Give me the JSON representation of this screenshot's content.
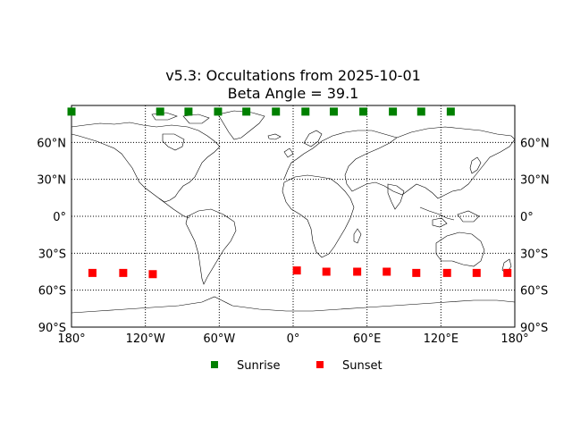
{
  "title": {
    "line1": "v5.3: Occultations from 2025-10-01",
    "line2": "Beta Angle = 39.1"
  },
  "legend": {
    "items": [
      {
        "label": "Sunrise",
        "color": "#008000"
      },
      {
        "label": "Sunset",
        "color": "#ff0000"
      }
    ],
    "placement": "bottom-center"
  },
  "chart_data": {
    "type": "scatter",
    "projection": "cylindrical",
    "xlim": [
      -180,
      180
    ],
    "ylim": [
      -90,
      90
    ],
    "grid": true,
    "x_ticks": [
      {
        "value": -180,
        "label": "180°"
      },
      {
        "value": -120,
        "label": "120°W"
      },
      {
        "value": -60,
        "label": "60°W"
      },
      {
        "value": 0,
        "label": "0°"
      },
      {
        "value": 60,
        "label": "60°E"
      },
      {
        "value": 120,
        "label": "120°E"
      },
      {
        "value": 180,
        "label": "180°"
      }
    ],
    "y_ticks": [
      {
        "value": 60,
        "label": "60°N"
      },
      {
        "value": 30,
        "label": "30°N"
      },
      {
        "value": 0,
        "label": "0°"
      },
      {
        "value": -30,
        "label": "30°S"
      },
      {
        "value": -60,
        "label": "60°S"
      },
      {
        "value": -90,
        "label": "90°S"
      }
    ],
    "series": [
      {
        "name": "Sunrise",
        "color": "#008000",
        "marker": "square",
        "points": [
          {
            "lon": -180,
            "lat": 85
          },
          {
            "lon": -108,
            "lat": 85
          },
          {
            "lon": -85,
            "lat": 85
          },
          {
            "lon": -61,
            "lat": 85
          },
          {
            "lon": -38,
            "lat": 85
          },
          {
            "lon": -14,
            "lat": 85
          },
          {
            "lon": 10,
            "lat": 85
          },
          {
            "lon": 33,
            "lat": 85
          },
          {
            "lon": 57,
            "lat": 85
          },
          {
            "lon": 81,
            "lat": 85
          },
          {
            "lon": 104,
            "lat": 85
          },
          {
            "lon": 128,
            "lat": 85
          }
        ]
      },
      {
        "name": "Sunset",
        "color": "#ff0000",
        "marker": "square",
        "points": [
          {
            "lon": -163,
            "lat": -46
          },
          {
            "lon": -138,
            "lat": -46
          },
          {
            "lon": -114,
            "lat": -47
          },
          {
            "lon": 3,
            "lat": -44
          },
          {
            "lon": 27,
            "lat": -45
          },
          {
            "lon": 52,
            "lat": -45
          },
          {
            "lon": 76,
            "lat": -45
          },
          {
            "lon": 100,
            "lat": -46
          },
          {
            "lon": 125,
            "lat": -46
          },
          {
            "lon": 149,
            "lat": -46
          },
          {
            "lon": 174,
            "lat": -46
          }
        ]
      }
    ]
  }
}
